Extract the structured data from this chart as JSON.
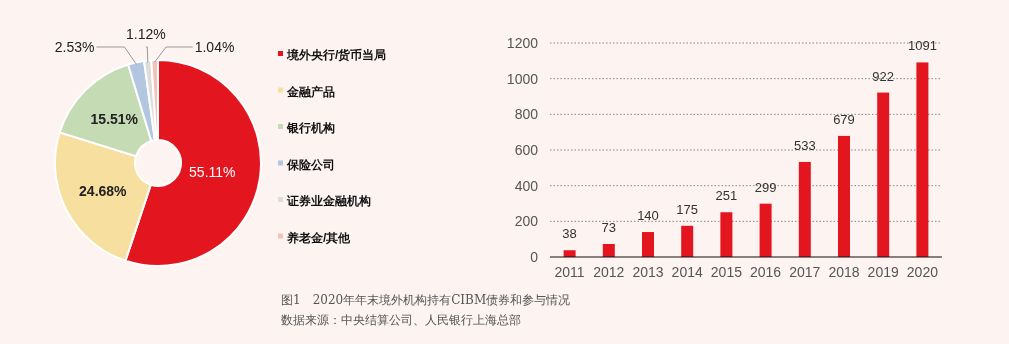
{
  "chart_data": [
    {
      "type": "donut",
      "categories": [
        "境外央行/货币当局",
        "金融产品",
        "银行机构",
        "保险公司",
        "证券业金融机构",
        "养老金/其他"
      ],
      "values": [
        55.11,
        24.68,
        15.51,
        2.53,
        1.12,
        1.04
      ],
      "colors": [
        "#e3151f",
        "#f7dfa0",
        "#c5dbb4",
        "#b3c6e0",
        "#dcdcdc",
        "#f2c4b8"
      ],
      "value_labels": [
        "55.11%",
        "24.68%",
        "15.51%",
        "2.53%",
        "1.12%",
        "1.04%"
      ],
      "legend": "right",
      "marker": "square"
    },
    {
      "type": "bar",
      "categories": [
        "2011",
        "2012",
        "2013",
        "2014",
        "2015",
        "2016",
        "2017",
        "2018",
        "2019",
        "2020"
      ],
      "values": [
        38,
        73,
        140,
        175,
        251,
        299,
        533,
        679,
        922,
        1091
      ],
      "color": "#e3151f",
      "ylim": [
        0,
        1200
      ],
      "yticks": [
        0,
        200,
        400,
        600,
        800,
        1000,
        1200
      ],
      "grid": "y",
      "data_labels": true,
      "annotations": [
        "图1　2020年年末境外机构持有CIBM债券和参与情况",
        "数据来源：中央结算公司、人民银行上海总部"
      ]
    }
  ]
}
